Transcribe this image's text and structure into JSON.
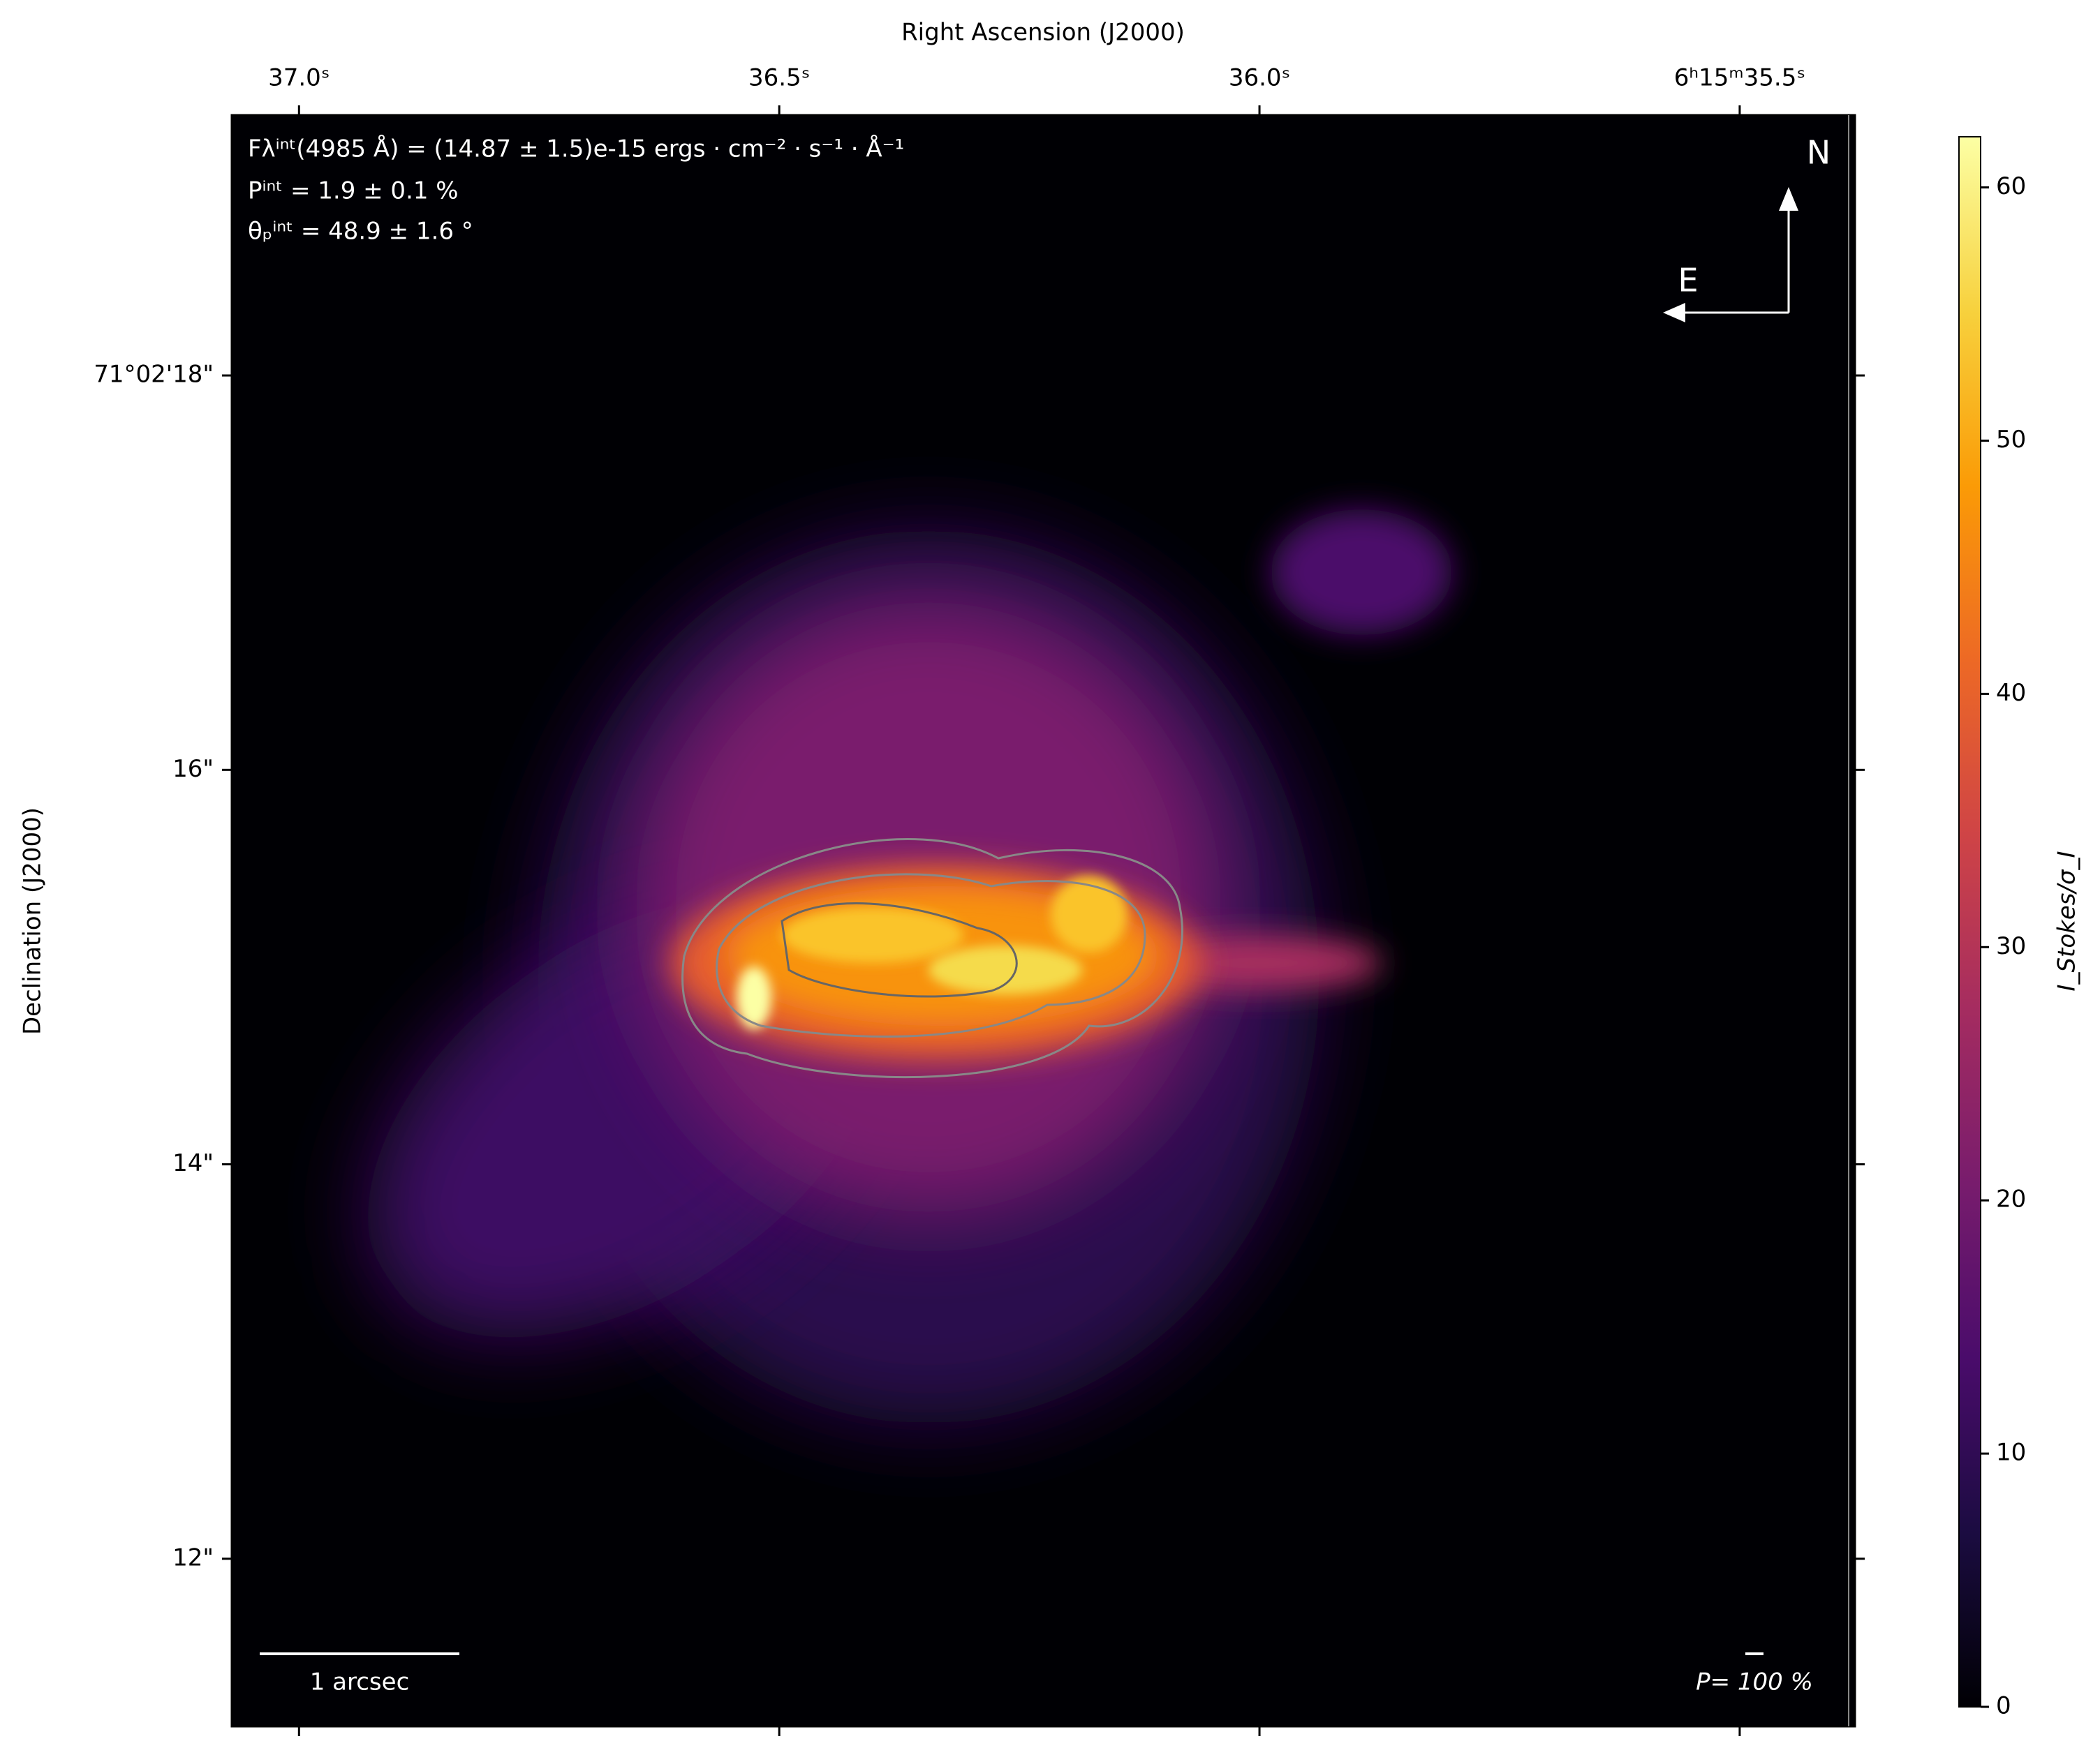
{
  "chart_data": {
    "type": "image",
    "title": "Right Ascension (J2000)",
    "y_label": "Declination (J2000)",
    "colorbar_label": "I_Stokes/σ_I",
    "colormap": "inferno",
    "xlim": [
      37.07,
      35.38
    ],
    "xticks": [
      {
        "value": 37.0,
        "label": "37.0ˢ"
      },
      {
        "value": 36.5,
        "label": "36.5ˢ"
      },
      {
        "value": 36.0,
        "label": "36.0ˢ"
      },
      {
        "value": 35.5,
        "label": "6ʰ15ᵐ35.5ˢ"
      }
    ],
    "ylim": [
      11.15,
      19.32
    ],
    "yticks": [
      {
        "value": 18,
        "label": "71°02'18\""
      },
      {
        "value": 16,
        "label": "16\""
      },
      {
        "value": 14,
        "label": "14\""
      },
      {
        "value": 12,
        "label": "12\""
      }
    ],
    "clim": [
      0,
      62
    ],
    "cticks": [
      0,
      10,
      20,
      30,
      40,
      50,
      60
    ],
    "annotations": [
      "Fλⁱⁿᵗ(4985 Å) = (14.87 ± 1.5)e-15 ergs · cm⁻² · s⁻¹ · Å⁻¹",
      "Pⁱⁿᵗ = 1.9 ± 0.1 %",
      "θₚⁱⁿᵗ = 48.9 ± 1.6 °"
    ],
    "compass": [
      "N",
      "E"
    ],
    "scale_bar": "1 arcsec",
    "pol_scale": "P= 100 %"
  }
}
